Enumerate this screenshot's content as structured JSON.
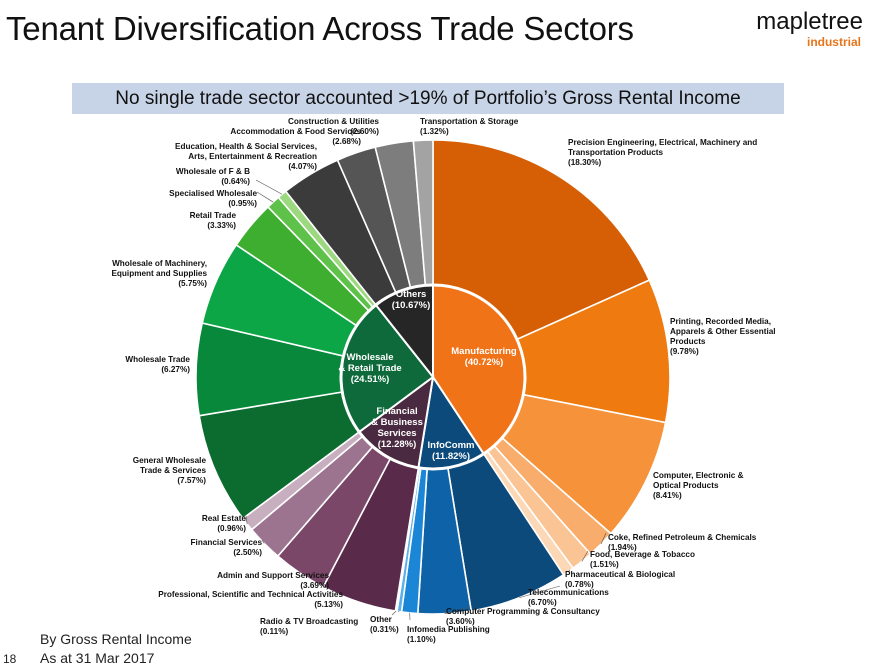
{
  "header": {
    "title": "Tenant Diversification Across Trade Sectors",
    "logo_main": "mapletree",
    "logo_sub": "industrial"
  },
  "banner": "No single trade sector accounted >19% of Portfolio’s Gross Rental Income",
  "footer": {
    "line1": "By Gross Rental Income",
    "line2": "As at 31 Mar 2017",
    "page_number": "18"
  },
  "chart_data": {
    "type": "pie",
    "subtype": "sunburst",
    "inner": [
      {
        "name": "Manufacturing",
        "value": 40.72,
        "label_lines": [
          "Manufacturing",
          "(40.72%)"
        ],
        "color": "#f07318"
      },
      {
        "name": "InfoComm",
        "value": 11.82,
        "label_lines": [
          "InfoComm",
          "(11.82%)"
        ],
        "color": "#0b4a7a"
      },
      {
        "name": "Financial & Business Services",
        "value": 12.28,
        "label_lines": [
          "Financial",
          "& Business",
          "Services",
          "(12.28%)"
        ],
        "color": "#4a2a40"
      },
      {
        "name": "Wholesale & Retail Trade",
        "value": 24.51,
        "label_lines": [
          "Wholesale",
          "& Retail Trade",
          "(24.51%)"
        ],
        "color": "#0e6a3a"
      },
      {
        "name": "Others",
        "value": 10.67,
        "label_lines": [
          "Others",
          "(10.67%)"
        ],
        "color": "#262626"
      }
    ],
    "outer": [
      {
        "label_lines": [
          "Precision Engineering, Electrical, Machinery and",
          "Transportation Products",
          "(18.30%)"
        ],
        "value": 18.3,
        "color": "#d65f05"
      },
      {
        "label_lines": [
          "Printing, Recorded Media,",
          "Apparels & Other Essential",
          "Products",
          "(9.78%)"
        ],
        "value": 9.78,
        "color": "#ee7a10"
      },
      {
        "label_lines": [
          "Computer, Electronic &",
          "Optical Products",
          "(8.41%)"
        ],
        "value": 8.41,
        "color": "#f5923a"
      },
      {
        "label_lines": [
          "Coke, Refined Petroleum & Chemicals",
          "(1.94%)"
        ],
        "value": 1.94,
        "color": "#f9ad6c"
      },
      {
        "label_lines": [
          "Food, Beverage & Tobacco",
          "(1.51%)"
        ],
        "value": 1.51,
        "color": "#fbc495"
      },
      {
        "label_lines": [
          "Pharmaceutical & Biological",
          "(0.78%)"
        ],
        "value": 0.78,
        "color": "#fcd8b6"
      },
      {
        "label_lines": [
          "Telecommunications",
          "(6.70%)"
        ],
        "value": 6.7,
        "color": "#0b4a7a"
      },
      {
        "label_lines": [
          "Computer Programming & Consultancy",
          "(3.60%)"
        ],
        "value": 3.6,
        "color": "#0d62a8"
      },
      {
        "label_lines": [
          "Infomedia Publishing",
          "(1.10%)"
        ],
        "value": 1.1,
        "color": "#1c86d6"
      },
      {
        "label_lines": [
          "Other",
          "(0.31%)"
        ],
        "value": 0.31,
        "color": "#5cb0ea"
      },
      {
        "label_lines": [
          "Radio & TV Broadcasting",
          "(0.11%)"
        ],
        "value": 0.11,
        "color": "#9ed0f3"
      },
      {
        "label_lines": [
          "Professional, Scientific and Technical Activities",
          "(5.13%)"
        ],
        "value": 5.13,
        "color": "#5a2a4a"
      },
      {
        "label_lines": [
          "Admin and Support Services",
          "(3.69%)"
        ],
        "value": 3.69,
        "color": "#7a4768"
      },
      {
        "label_lines": [
          "Financial Services",
          "(2.50%)"
        ],
        "value": 2.5,
        "color": "#9c7490"
      },
      {
        "label_lines": [
          "Real Estate",
          "(0.96%)"
        ],
        "value": 0.96,
        "color": "#c7afc0"
      },
      {
        "label_lines": [
          "General Wholesale",
          "Trade & Services",
          "(7.57%)"
        ],
        "value": 7.57,
        "color": "#0c6b2f"
      },
      {
        "label_lines": [
          "Wholesale Trade",
          "(6.27%)"
        ],
        "value": 6.27,
        "color": "#07883a"
      },
      {
        "label_lines": [
          "Wholesale of Machinery,",
          "Equipment and Supplies",
          "(5.75%)"
        ],
        "value": 5.75,
        "color": "#0ca647"
      },
      {
        "label_lines": [
          "Retail Trade",
          "(3.33%)"
        ],
        "value": 3.33,
        "color": "#3dae2f"
      },
      {
        "label_lines": [
          "Specialised Wholesale",
          "(0.95%)"
        ],
        "value": 0.95,
        "color": "#5ec24a"
      },
      {
        "label_lines": [
          "Wholesale of F & B",
          "(0.64%)"
        ],
        "value": 0.64,
        "color": "#9bd87f"
      },
      {
        "label_lines": [
          "Education, Health & Social Services,",
          "Arts, Entertainment & Recreation",
          "(4.07%)"
        ],
        "value": 4.07,
        "color": "#3b3b3b"
      },
      {
        "label_lines": [
          "Accommodation & Food Services",
          "(2.68%)"
        ],
        "value": 2.68,
        "color": "#555555"
      },
      {
        "label_lines": [
          "Construction & Utilities",
          "(2.60%)"
        ],
        "value": 2.6,
        "color": "#7d7d7d"
      },
      {
        "label_lines": [
          "Transportation & Storage",
          "(1.32%)"
        ],
        "value": 1.32,
        "color": "#a3a3a3"
      }
    ]
  }
}
